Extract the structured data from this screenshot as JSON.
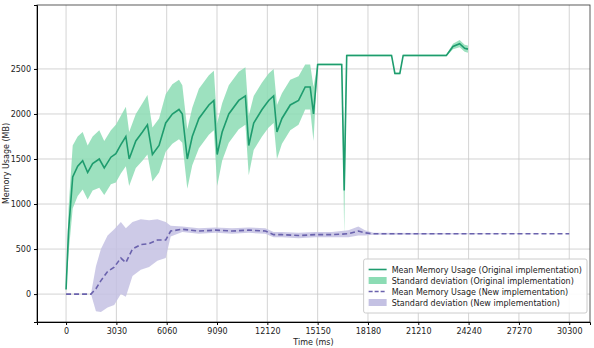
{
  "chart_data": {
    "type": "line",
    "x_label": "Time (ms)",
    "y_label": "Memory Usage (MB)",
    "xlim": [
      -1750,
      31550
    ],
    "ylim": [
      -310,
      3210
    ],
    "xticks": [
      0,
      3030,
      6060,
      9090,
      12120,
      15150,
      18180,
      21210,
      24240,
      27270,
      30300
    ],
    "yticks": [
      0,
      500,
      1000,
      1500,
      2000,
      2500
    ],
    "grid": true,
    "legend": "lower right",
    "series": [
      {
        "name": "Mean Memory Usage (Original implementation)",
        "color": "#1e9c6e",
        "line_style": "solid",
        "x": [
          0,
          150,
          400,
          700,
          1000,
          1300,
          1600,
          2000,
          2300,
          2700,
          3000,
          3300,
          3600,
          3800,
          4200,
          4600,
          4900,
          5200,
          5600,
          6000,
          6400,
          6800,
          7000,
          7300,
          7600,
          8000,
          8600,
          8900,
          9100,
          9400,
          9800,
          10400,
          10800,
          11000,
          11300,
          11800,
          12200,
          12500,
          12700,
          13000,
          13500,
          14000,
          14400,
          14700,
          14900,
          15150,
          16600,
          16750,
          16900,
          19600,
          19800,
          20100,
          20300,
          22900,
          23300,
          23700,
          24000,
          24200
        ],
        "values": [
          50,
          700,
          1300,
          1420,
          1480,
          1350,
          1450,
          1500,
          1400,
          1520,
          1560,
          1660,
          1750,
          1500,
          1700,
          1800,
          1880,
          1550,
          1650,
          1900,
          2000,
          2050,
          2000,
          1500,
          1750,
          1950,
          2100,
          2150,
          1550,
          1800,
          2000,
          2150,
          2200,
          1650,
          1900,
          2050,
          2150,
          2200,
          1800,
          1950,
          2100,
          2150,
          2300,
          2300,
          2000,
          2550,
          2550,
          1150,
          2650,
          2650,
          2450,
          2450,
          2650,
          2650,
          2750,
          2780,
          2730,
          2720
        ],
        "std": {
          "name": "Standard deviation (Original implementation)",
          "color": "#8cdcb4",
          "values": [
            0,
            250,
            350,
            330,
            320,
            300,
            300,
            320,
            300,
            300,
            320,
            320,
            330,
            300,
            300,
            320,
            330,
            300,
            300,
            320,
            330,
            330,
            320,
            330,
            320,
            330,
            330,
            330,
            350,
            320,
            320,
            320,
            320,
            330,
            300,
            300,
            300,
            300,
            300,
            280,
            280,
            270,
            250,
            250,
            300,
            10,
            10,
            500,
            10,
            10,
            10,
            10,
            10,
            10,
            30,
            40,
            40,
            40
          ]
        }
      },
      {
        "name": "Mean Memory Usage (New implementation)",
        "color": "#6a62ad",
        "line_style": "dashed",
        "x": [
          0,
          1500,
          1800,
          2100,
          2500,
          2900,
          3300,
          3600,
          4000,
          4500,
          5000,
          5500,
          6000,
          6300,
          7000,
          8000,
          9000,
          10000,
          11000,
          12000,
          12500,
          13000,
          14000,
          15000,
          16000,
          17000,
          17600,
          18000,
          18500,
          30300
        ],
        "values": [
          0,
          0,
          60,
          150,
          250,
          300,
          400,
          350,
          500,
          550,
          560,
          600,
          600,
          700,
          720,
          700,
          710,
          700,
          710,
          700,
          660,
          660,
          650,
          660,
          660,
          670,
          700,
          680,
          670,
          670
        ],
        "std": {
          "name": "Standard deviation (New implementation)",
          "color": "#c4c1e3",
          "values": [
            0,
            0,
            250,
            350,
            400,
            420,
            400,
            380,
            300,
            280,
            260,
            230,
            200,
            60,
            30,
            30,
            30,
            30,
            30,
            30,
            30,
            30,
            30,
            30,
            30,
            40,
            50,
            30,
            10,
            0
          ]
        }
      }
    ]
  }
}
